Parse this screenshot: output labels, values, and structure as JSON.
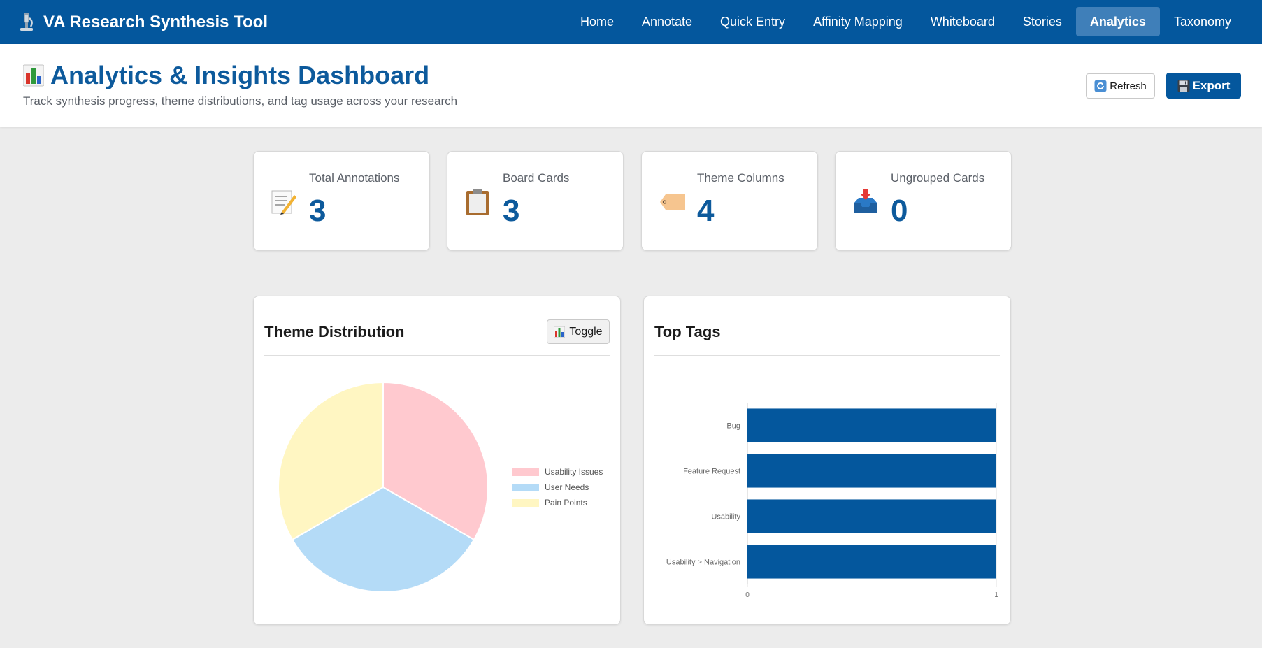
{
  "app": {
    "title": "VA Research Synthesis Tool",
    "brand_icon": "microscope-icon"
  },
  "nav": {
    "items": [
      {
        "label": "Home",
        "active": false
      },
      {
        "label": "Annotate",
        "active": false
      },
      {
        "label": "Quick Entry",
        "active": false
      },
      {
        "label": "Affinity Mapping",
        "active": false
      },
      {
        "label": "Whiteboard",
        "active": false
      },
      {
        "label": "Stories",
        "active": false
      },
      {
        "label": "Analytics",
        "active": true
      },
      {
        "label": "Taxonomy",
        "active": false
      }
    ]
  },
  "header": {
    "title": "Analytics & Insights Dashboard",
    "subtitle": "Track synthesis progress, theme distributions, and tag usage across your research",
    "refresh_label": "Refresh",
    "export_label": "Export"
  },
  "stats": [
    {
      "label": "Total Annotations",
      "value": "3",
      "icon": "memo-icon"
    },
    {
      "label": "Board Cards",
      "value": "3",
      "icon": "clipboard-icon"
    },
    {
      "label": "Theme Columns",
      "value": "4",
      "icon": "tag-icon"
    },
    {
      "label": "Ungrouped Cards",
      "value": "0",
      "icon": "inbox-tray-icon"
    }
  ],
  "theme_panel": {
    "title": "Theme Distribution",
    "toggle_label": "Toggle"
  },
  "tags_panel": {
    "title": "Top Tags"
  },
  "colors": {
    "primary": "#04579d",
    "nav_active": "#3f7fb9",
    "stat_value": "#0d5a9c"
  },
  "chart_data": [
    {
      "type": "pie",
      "title": "Theme Distribution",
      "labels": [
        "Usability Issues",
        "User Needs",
        "Pain Points"
      ],
      "values": [
        1,
        1,
        1
      ],
      "colors": [
        "#ffc9cf",
        "#b4dbf7",
        "#fff6c2"
      ],
      "legend": "right"
    },
    {
      "type": "bar",
      "orientation": "horizontal",
      "title": "Top Tags",
      "categories": [
        "Bug",
        "Feature Request",
        "Usability",
        "Usability > Navigation"
      ],
      "values": [
        1,
        1,
        1,
        1
      ],
      "xlim": [
        0,
        1
      ],
      "x_ticks": [
        "0",
        "1"
      ],
      "color": "#04579d",
      "grid": true
    }
  ]
}
